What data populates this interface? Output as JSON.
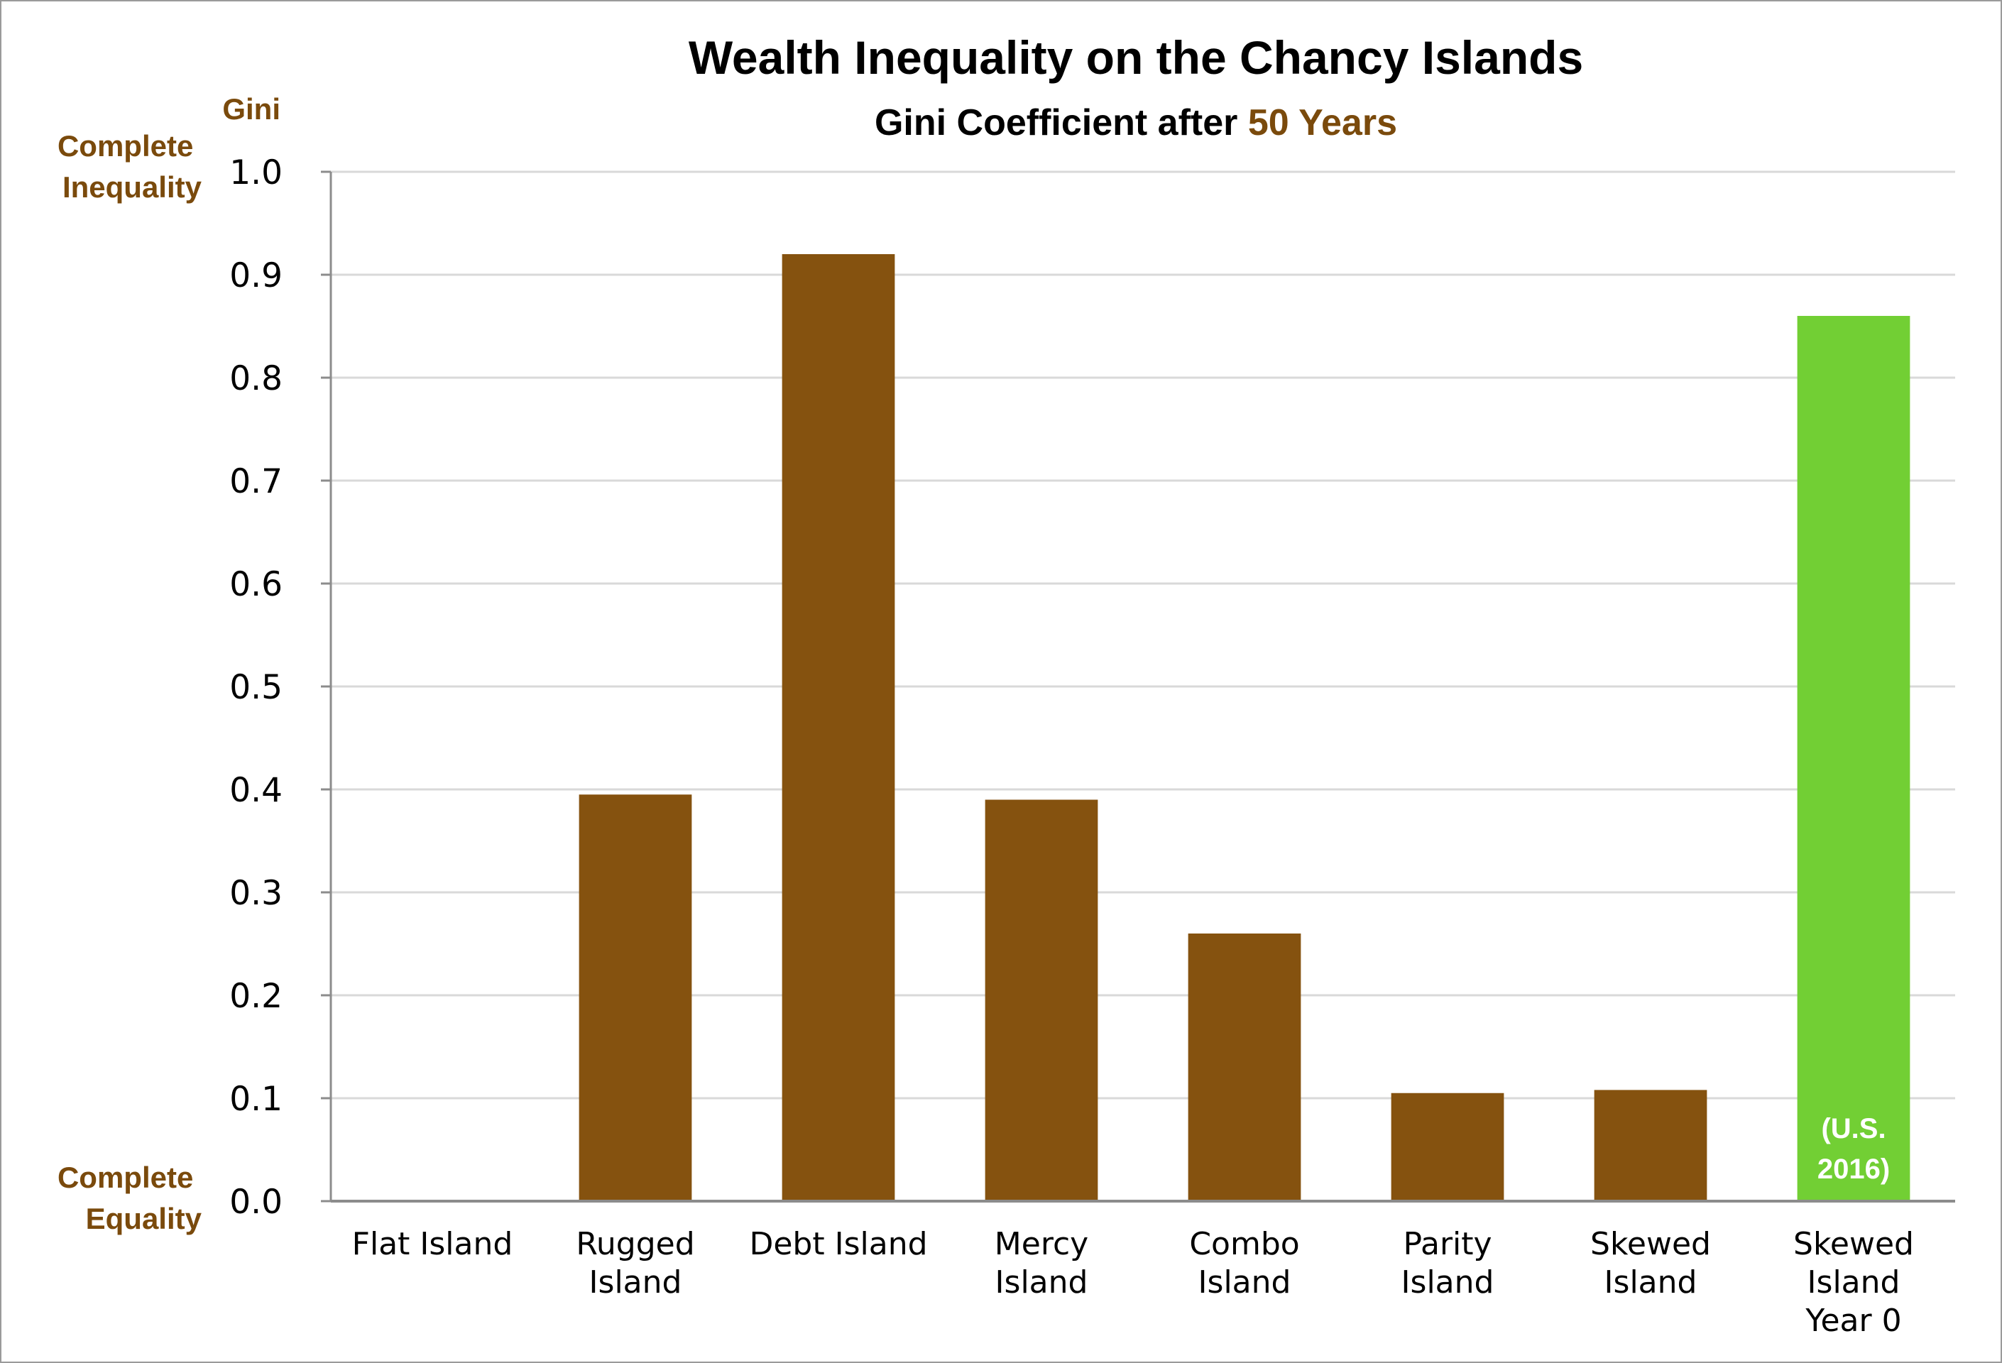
{
  "chart_data": {
    "type": "bar",
    "title": "Wealth Inequality on the Chancy Islands",
    "subtitle_prefix": "Gini Coefficient after ",
    "subtitle_highlight": "50 Years",
    "ylabel": "Gini",
    "y_top_label": [
      "Complete",
      "Inequality"
    ],
    "y_bottom_label": [
      "Complete",
      "Equality"
    ],
    "ylim": [
      0,
      1.0
    ],
    "yticks": [
      "0.0",
      "0.1",
      "0.2",
      "0.3",
      "0.4",
      "0.5",
      "0.6",
      "0.7",
      "0.8",
      "0.9",
      "1.0"
    ],
    "grid": true,
    "categories": [
      [
        "Flat Island"
      ],
      [
        "Rugged",
        "Island"
      ],
      [
        "Debt Island"
      ],
      [
        "Mercy",
        "Island"
      ],
      [
        "Combo",
        "Island"
      ],
      [
        "Parity",
        "Island"
      ],
      [
        "Skewed",
        "Island"
      ],
      [
        "Skewed",
        "Island",
        "Year 0"
      ]
    ],
    "values": [
      0.0,
      0.395,
      0.92,
      0.39,
      0.26,
      0.105,
      0.108,
      0.86
    ],
    "bar_colors": [
      "#85520f",
      "#85520f",
      "#85520f",
      "#85520f",
      "#85520f",
      "#85520f",
      "#85520f",
      "#72cf34"
    ],
    "bar_annotation": {
      "index": 7,
      "lines": [
        "(U.S.",
        "2016)"
      ]
    },
    "colors": {
      "accent_brown": "#7a4a0c",
      "grid": "#d9d9d9",
      "axis": "#8c8c8c"
    }
  }
}
